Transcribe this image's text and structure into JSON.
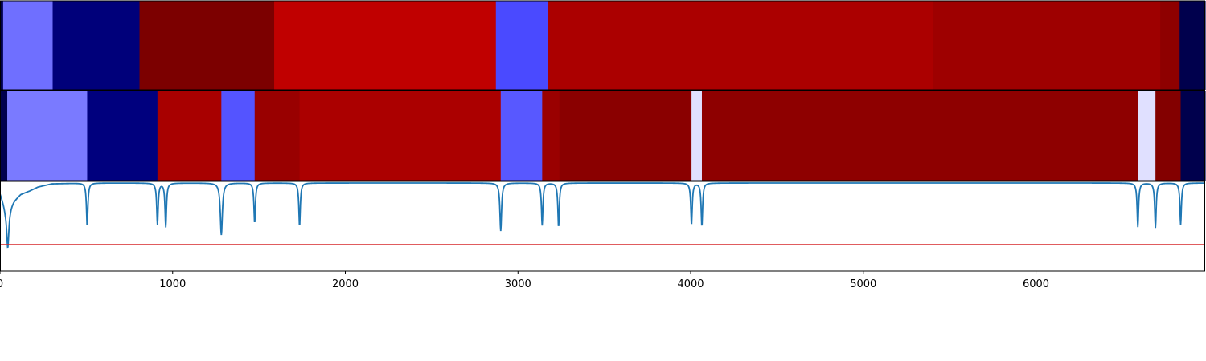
{
  "chart_data": [
    {
      "type": "heatmap",
      "xlim": [
        0,
        6980
      ],
      "segments": [
        {
          "start": 0,
          "end": 18,
          "color": "#00004d"
        },
        {
          "start": 18,
          "end": 305,
          "color": "#6f6fff"
        },
        {
          "start": 305,
          "end": 808,
          "color": "#00007a"
        },
        {
          "start": 808,
          "end": 1588,
          "color": "#7c0000"
        },
        {
          "start": 1588,
          "end": 2872,
          "color": "#c00000"
        },
        {
          "start": 2872,
          "end": 3173,
          "color": "#4a4aff"
        },
        {
          "start": 3173,
          "end": 5405,
          "color": "#ab0000"
        },
        {
          "start": 5405,
          "end": 6720,
          "color": "#9e0000"
        },
        {
          "start": 6720,
          "end": 6832,
          "color": "#8e0000"
        },
        {
          "start": 6832,
          "end": 6980,
          "color": "#00004d"
        }
      ]
    },
    {
      "type": "heatmap",
      "xlim": [
        0,
        6980
      ],
      "segments": [
        {
          "start": 0,
          "end": 42,
          "color": "#00004d"
        },
        {
          "start": 42,
          "end": 505,
          "color": "#7a7aff"
        },
        {
          "start": 505,
          "end": 912,
          "color": "#00007e"
        },
        {
          "start": 912,
          "end": 1282,
          "color": "#a80000"
        },
        {
          "start": 1282,
          "end": 1475,
          "color": "#5454ff"
        },
        {
          "start": 1475,
          "end": 1735,
          "color": "#990000"
        },
        {
          "start": 1735,
          "end": 2900,
          "color": "#ab0000"
        },
        {
          "start": 2900,
          "end": 3140,
          "color": "#5858ff"
        },
        {
          "start": 3140,
          "end": 3240,
          "color": "#9a0000"
        },
        {
          "start": 3240,
          "end": 4005,
          "color": "#8a0000"
        },
        {
          "start": 4005,
          "end": 4065,
          "color": "#e0e0ff"
        },
        {
          "start": 4065,
          "end": 6590,
          "color": "#8e0000"
        },
        {
          "start": 6590,
          "end": 6692,
          "color": "#e0e0ff"
        },
        {
          "start": 6692,
          "end": 6838,
          "color": "#830000"
        },
        {
          "start": 6838,
          "end": 6980,
          "color": "#00004d"
        }
      ]
    },
    {
      "type": "line",
      "xlim": [
        0,
        6980
      ],
      "ylim": [
        -1.1,
        0.02
      ],
      "x_ticks": [
        0,
        1000,
        2000,
        3000,
        4000,
        5000,
        6000
      ],
      "x_tick_labels": [
        "0",
        "1000",
        "2000",
        "3000",
        "4000",
        "5000",
        "6000"
      ],
      "series": [
        {
          "color": "#1f77b4",
          "dips": [
            {
              "x": 45,
              "depth": 0.52,
              "width": 22
            },
            {
              "x": 505,
              "depth": 0.54,
              "width": 14
            },
            {
              "x": 912,
              "depth": 0.52,
              "width": 14
            },
            {
              "x": 960,
              "depth": 0.55,
              "width": 14
            },
            {
              "x": 1282,
              "depth": 0.65,
              "width": 20
            },
            {
              "x": 1475,
              "depth": 0.5,
              "width": 14
            },
            {
              "x": 1735,
              "depth": 0.54,
              "width": 14
            },
            {
              "x": 2900,
              "depth": 0.6,
              "width": 16
            },
            {
              "x": 3140,
              "depth": 0.53,
              "width": 14
            },
            {
              "x": 3235,
              "depth": 0.55,
              "width": 14
            },
            {
              "x": 4005,
              "depth": 0.52,
              "width": 14
            },
            {
              "x": 4065,
              "depth": 0.54,
              "width": 14
            },
            {
              "x": 6590,
              "depth": 0.55,
              "width": 14
            },
            {
              "x": 6692,
              "depth": 0.56,
              "width": 14
            },
            {
              "x": 6838,
              "depth": 0.52,
              "width": 14
            }
          ],
          "ramp": [
            [
              0,
              -0.12
            ],
            [
              30,
              -0.3
            ],
            [
              60,
              -0.28
            ],
            [
              80,
              -0.22
            ],
            [
              120,
              -0.14
            ],
            [
              170,
              -0.1
            ],
            [
              220,
              -0.05
            ],
            [
              300,
              -0.01
            ],
            [
              500,
              0.0
            ]
          ]
        },
        {
          "color": "#d62728",
          "constant": -0.77
        }
      ]
    }
  ]
}
